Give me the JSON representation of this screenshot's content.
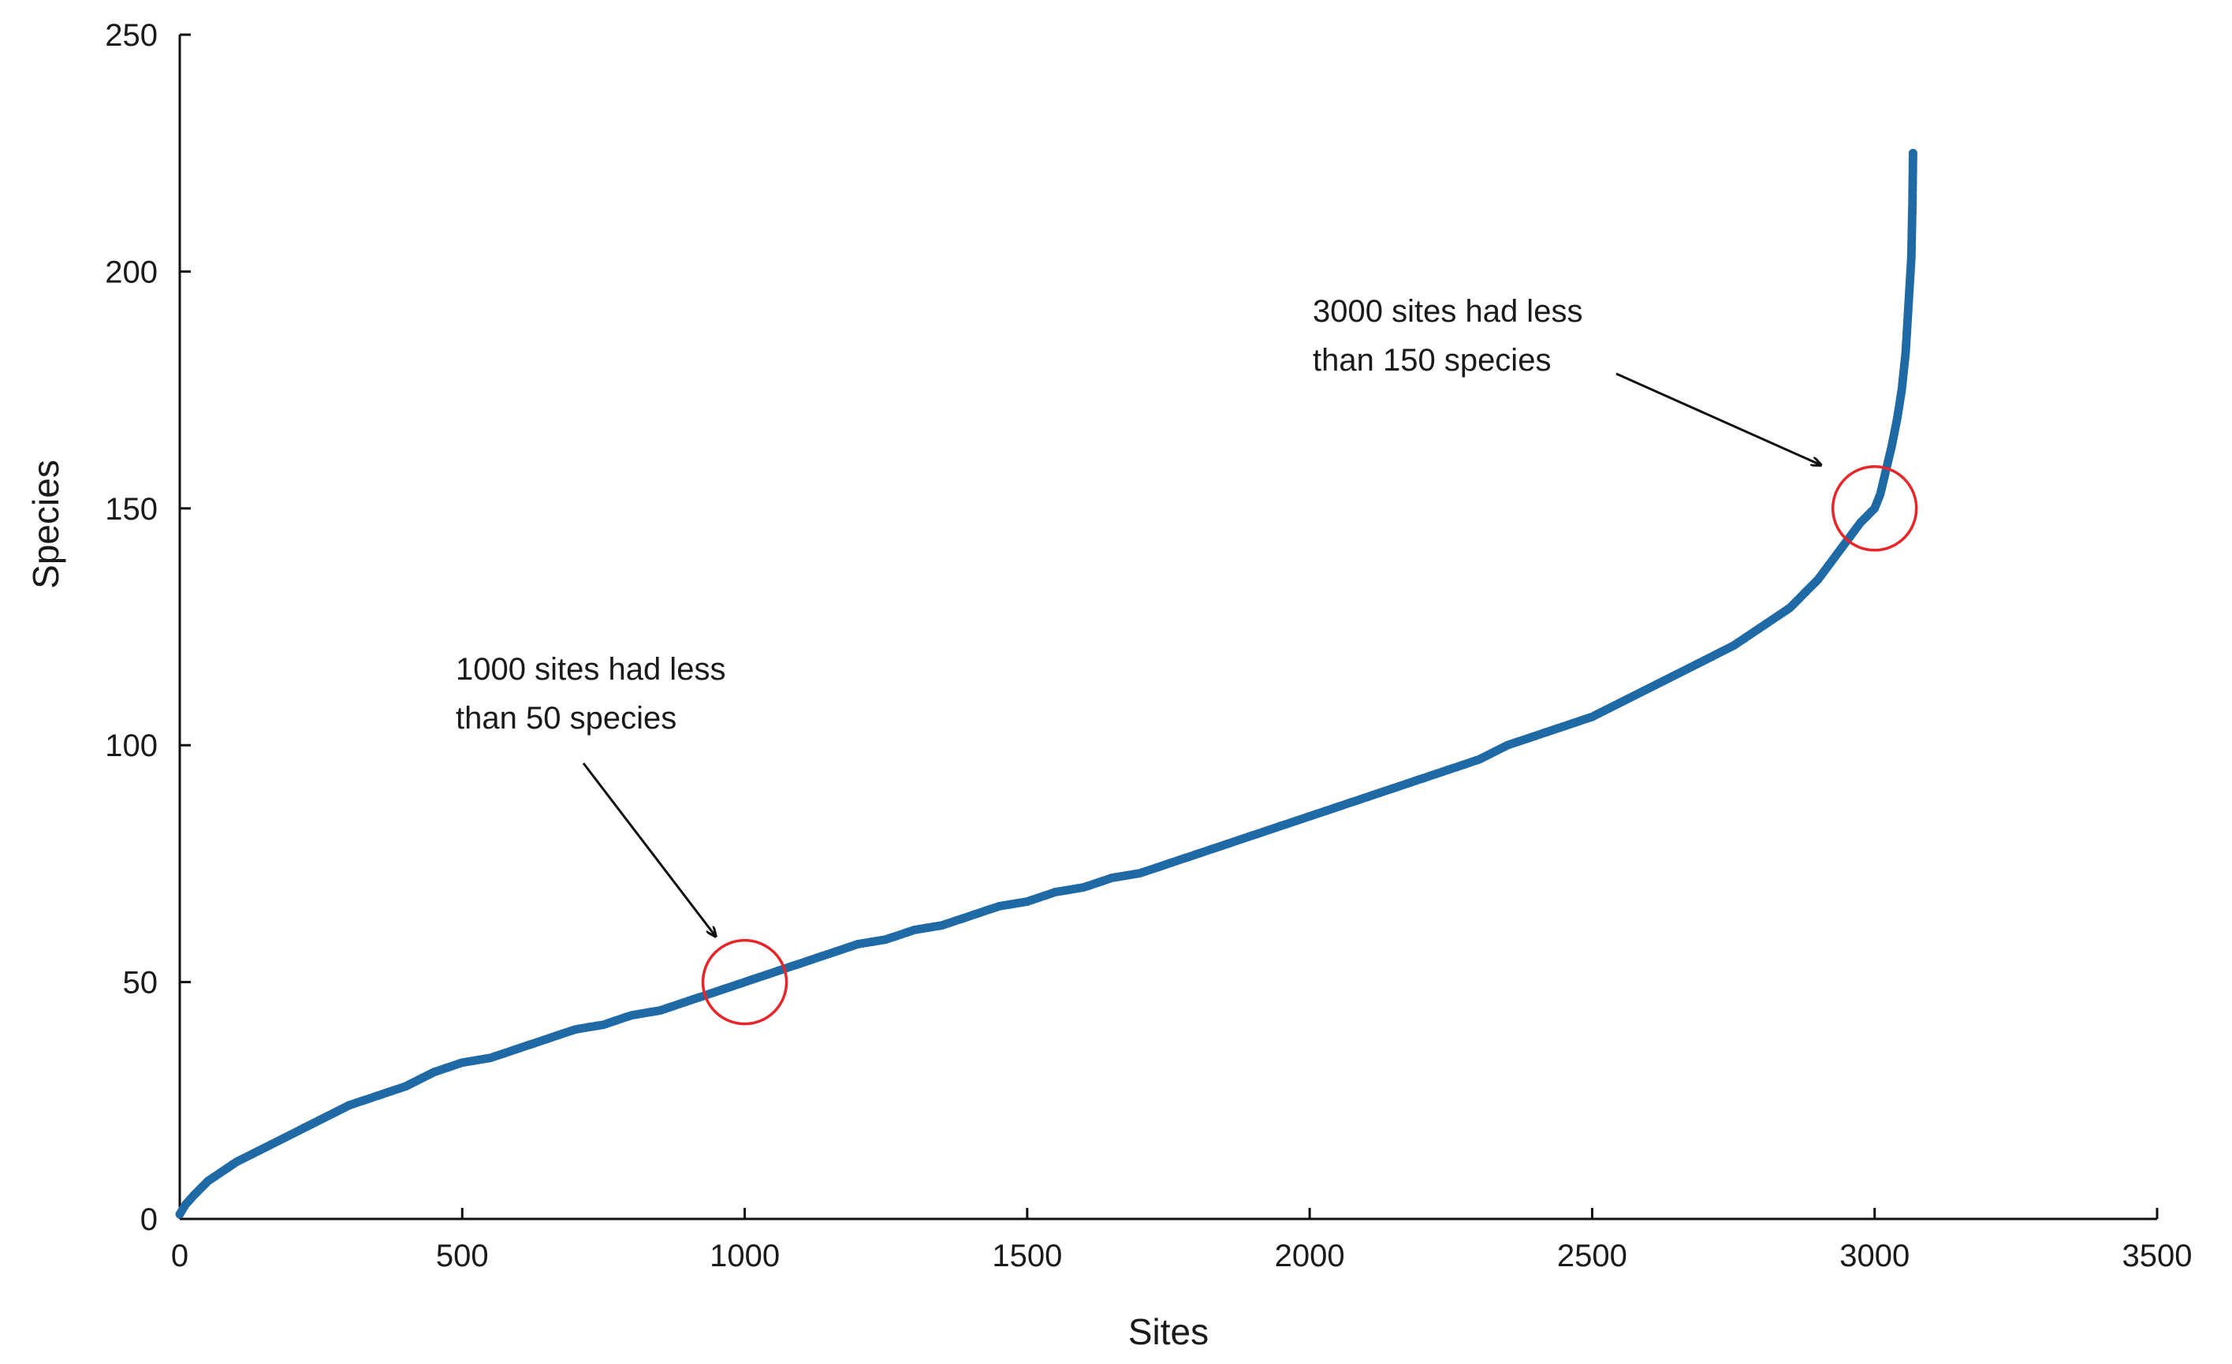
{
  "chart_data": {
    "type": "scatter",
    "title": "",
    "xlabel": "Sites",
    "ylabel": "Species",
    "xlim": [
      0,
      3500
    ],
    "ylim": [
      0,
      250
    ],
    "x_ticks": [
      "0",
      "500",
      "1000",
      "1500",
      "2000",
      "2500",
      "3000",
      "3500"
    ],
    "y_ticks": [
      "0",
      "50",
      "100",
      "150",
      "200",
      "250"
    ],
    "grid": false,
    "legend": "none",
    "marker_color": "#1f6aa5",
    "highlight_color": "#e8262a",
    "series": [
      {
        "points": [
          [
            0,
            1
          ],
          [
            10,
            3
          ],
          [
            25,
            5
          ],
          [
            50,
            8
          ],
          [
            75,
            10
          ],
          [
            100,
            12
          ],
          [
            150,
            15
          ],
          [
            200,
            18
          ],
          [
            250,
            21
          ],
          [
            300,
            24
          ],
          [
            350,
            26
          ],
          [
            400,
            28
          ],
          [
            450,
            31
          ],
          [
            500,
            33
          ],
          [
            550,
            34
          ],
          [
            600,
            36
          ],
          [
            650,
            38
          ],
          [
            700,
            40
          ],
          [
            750,
            41
          ],
          [
            800,
            43
          ],
          [
            850,
            44
          ],
          [
            900,
            46
          ],
          [
            950,
            48
          ],
          [
            1000,
            50
          ],
          [
            1050,
            52
          ],
          [
            1100,
            54
          ],
          [
            1150,
            56
          ],
          [
            1200,
            58
          ],
          [
            1250,
            59
          ],
          [
            1300,
            61
          ],
          [
            1350,
            62
          ],
          [
            1400,
            64
          ],
          [
            1450,
            66
          ],
          [
            1500,
            67
          ],
          [
            1550,
            69
          ],
          [
            1600,
            70
          ],
          [
            1650,
            72
          ],
          [
            1700,
            73
          ],
          [
            1750,
            75
          ],
          [
            1800,
            77
          ],
          [
            1850,
            79
          ],
          [
            1900,
            81
          ],
          [
            1950,
            83
          ],
          [
            2000,
            85
          ],
          [
            2050,
            87
          ],
          [
            2100,
            89
          ],
          [
            2150,
            91
          ],
          [
            2200,
            93
          ],
          [
            2250,
            95
          ],
          [
            2300,
            97
          ],
          [
            2350,
            100
          ],
          [
            2400,
            102
          ],
          [
            2450,
            104
          ],
          [
            2500,
            106
          ],
          [
            2550,
            109
          ],
          [
            2600,
            112
          ],
          [
            2650,
            115
          ],
          [
            2700,
            118
          ],
          [
            2750,
            121
          ],
          [
            2800,
            125
          ],
          [
            2850,
            129
          ],
          [
            2900,
            135
          ],
          [
            2925,
            139
          ],
          [
            2950,
            143
          ],
          [
            2975,
            147
          ],
          [
            3000,
            150
          ],
          [
            3010,
            153
          ],
          [
            3020,
            158
          ],
          [
            3030,
            163
          ],
          [
            3040,
            169
          ],
          [
            3048,
            175
          ],
          [
            3055,
            183
          ],
          [
            3060,
            193
          ],
          [
            3065,
            203
          ],
          [
            3067,
            215
          ],
          [
            3068,
            225
          ]
        ]
      }
    ],
    "annotations": [
      {
        "lines": [
          "1000 sites had less",
          "than 50 species"
        ],
        "target": [
          1000,
          50
        ]
      },
      {
        "lines": [
          "3000 sites had less",
          "than 150 species"
        ],
        "target": [
          3000,
          150
        ]
      }
    ]
  }
}
